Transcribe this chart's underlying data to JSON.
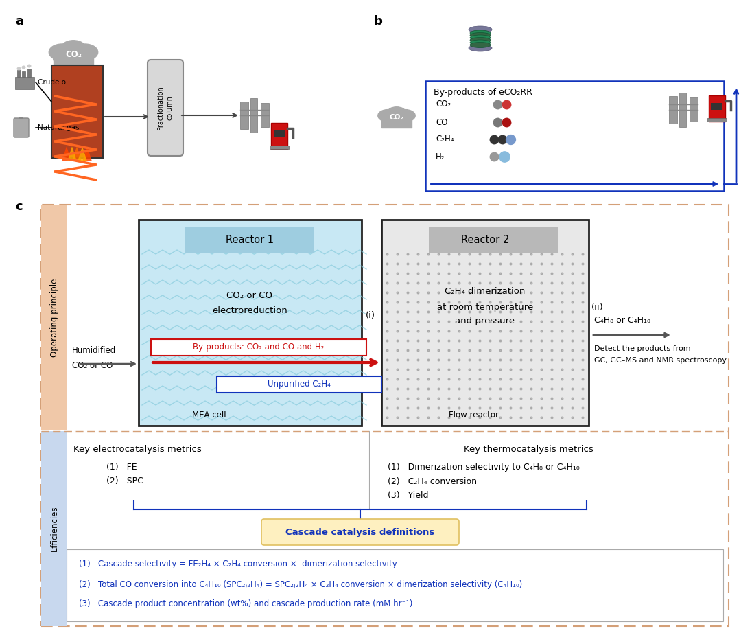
{
  "fig_width": 10.8,
  "fig_height": 9.22,
  "bg_color": "#ffffff",
  "panel_a_label": "a",
  "panel_b_label": "b",
  "panel_c_label": "c",
  "reactor1_title": "Reactor 1",
  "reactor2_title": "Reactor 2",
  "reactor1_text1": "CO₂ or CO",
  "reactor1_text2": "electroreduction",
  "reactor2_text1": "C₂H₄ dimerization",
  "reactor2_text2": "at room temperature",
  "reactor2_text3": "and pressure",
  "mea_cell": "MEA cell",
  "flow_reactor": "Flow reactor",
  "humidified_line1": "Humidified",
  "humidified_line2": "CO₂ or CO",
  "byproducts_label": "By-products: CO₂ and CO and H₂",
  "unpurified_label": "Unpurified C₂H₄",
  "c4_products": "C₄H₈ or C₄H₁₀",
  "detect_text1": "Detect the products from",
  "detect_text2": "GC, GC–MS and NMR spectroscopy",
  "i_label": "(i)",
  "ii_label": "(ii)",
  "op_principle": "Operating principle",
  "efficiencies": "Efficiencies",
  "key_electro": "Key electrocatalysis metrics",
  "key_thermo": "Key thermocatalysis metrics",
  "electro_item1": "(1)   FE",
  "electro_item2": "(2)   SPC",
  "thermo_item1": "(1)   Dimerization selectivity to C₄H₈ or C₄H₁₀",
  "thermo_item2": "(2)   C₂H₄ conversion",
  "thermo_item3": "(3)   Yield",
  "cascade_def": "Cascade catalysis definitions",
  "cascade_eq1": "(1)   Cascade selectivity = FE₂H₄ × C₂H₄ conversion ×  dimerization selectivity",
  "cascade_eq2": "(2)   Total CO conversion into C₄H₁₀ (SPC₂₎₂H₄) = SPC₂₎₂H₄ × C₂H₄ conversion × dimerization selectivity (C₄H₁₀)",
  "cascade_eq3": "(3)   Cascade product concentration (wt%) and cascade production rate (mM hr⁻¹)",
  "panel_c_outer_border": "#d4a078",
  "reactor1_header_color": "#9ecde0",
  "reactor2_header_color": "#b8b8b8",
  "reactor1_bg_color": "#c8e8f4",
  "reactor2_bg_color": "#e8e8e8",
  "byproducts_border_color": "#cc1111",
  "byproducts_text_color": "#cc1111",
  "unpurified_border_color": "#1133bb",
  "unpurified_text_color": "#1133bb",
  "op_principle_bg": "#f0c8a8",
  "efficiencies_bg": "#c8d8ee",
  "cascade_box_bg": "#fef0c0",
  "cascade_box_border": "#e0c060",
  "cascade_text_color": "#1133bb",
  "blue_color": "#1133bb",
  "dark_arrow_color": "#555555",
  "red_arrow_color": "#cc1111",
  "panel_sep_color": "#d4a078"
}
